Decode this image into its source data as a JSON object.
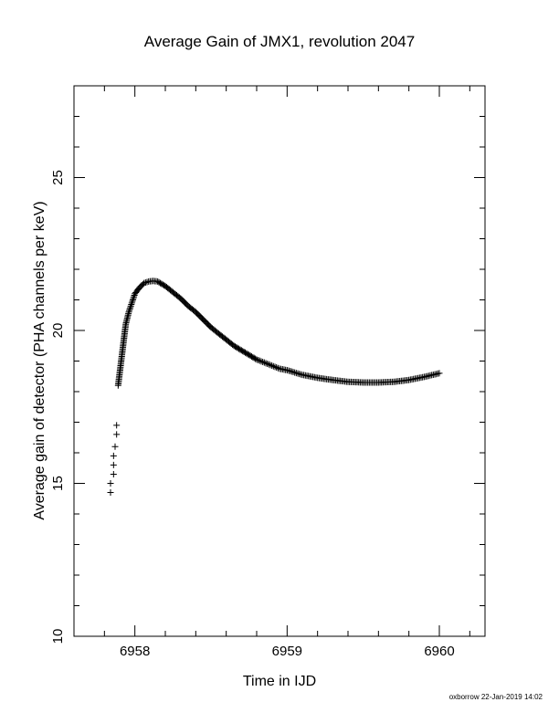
{
  "chart_data": {
    "type": "scatter",
    "title": "Average Gain of JMX1, revolution 2047",
    "xlabel": "Time in IJD",
    "ylabel": "Average gain of detector (PHA channels per keV)",
    "xlim": [
      6957.6,
      6960.3
    ],
    "ylim": [
      10,
      28
    ],
    "xticks": [
      6958,
      6959,
      6960
    ],
    "yticks": [
      10,
      15,
      20,
      25
    ],
    "marker": "+",
    "grid": false,
    "series": [
      {
        "x": [
          6957.84,
          6957.84,
          6957.86,
          6957.86,
          6957.86,
          6957.87,
          6957.88,
          6957.88,
          6957.89,
          6957.9,
          6957.91,
          6957.92,
          6957.93,
          6957.94,
          6957.96,
          6957.98,
          6958.0,
          6958.03,
          6958.06,
          6958.09,
          6958.12,
          6958.15,
          6958.2,
          6958.25,
          6958.3,
          6958.35,
          6958.4,
          6958.45,
          6958.5,
          6958.55,
          6958.6,
          6958.65,
          6958.7,
          6958.75,
          6958.8,
          6958.85,
          6958.9,
          6958.95,
          6959.0,
          6959.1,
          6959.2,
          6959.3,
          6959.4,
          6959.5,
          6959.6,
          6959.7,
          6959.8,
          6959.9,
          6960.0
        ],
        "y": [
          14.7,
          15.0,
          15.3,
          15.6,
          15.9,
          16.2,
          16.6,
          16.9,
          18.2,
          18.6,
          19.0,
          19.4,
          19.8,
          20.2,
          20.6,
          20.9,
          21.2,
          21.4,
          21.55,
          21.6,
          21.62,
          21.6,
          21.45,
          21.25,
          21.05,
          20.8,
          20.6,
          20.35,
          20.1,
          19.9,
          19.7,
          19.5,
          19.35,
          19.2,
          19.05,
          18.95,
          18.85,
          18.75,
          18.7,
          18.55,
          18.45,
          18.38,
          18.32,
          18.3,
          18.3,
          18.32,
          18.38,
          18.48,
          18.6
        ]
      }
    ]
  },
  "footer": "oxborrow 22-Jan-2019 14:02"
}
